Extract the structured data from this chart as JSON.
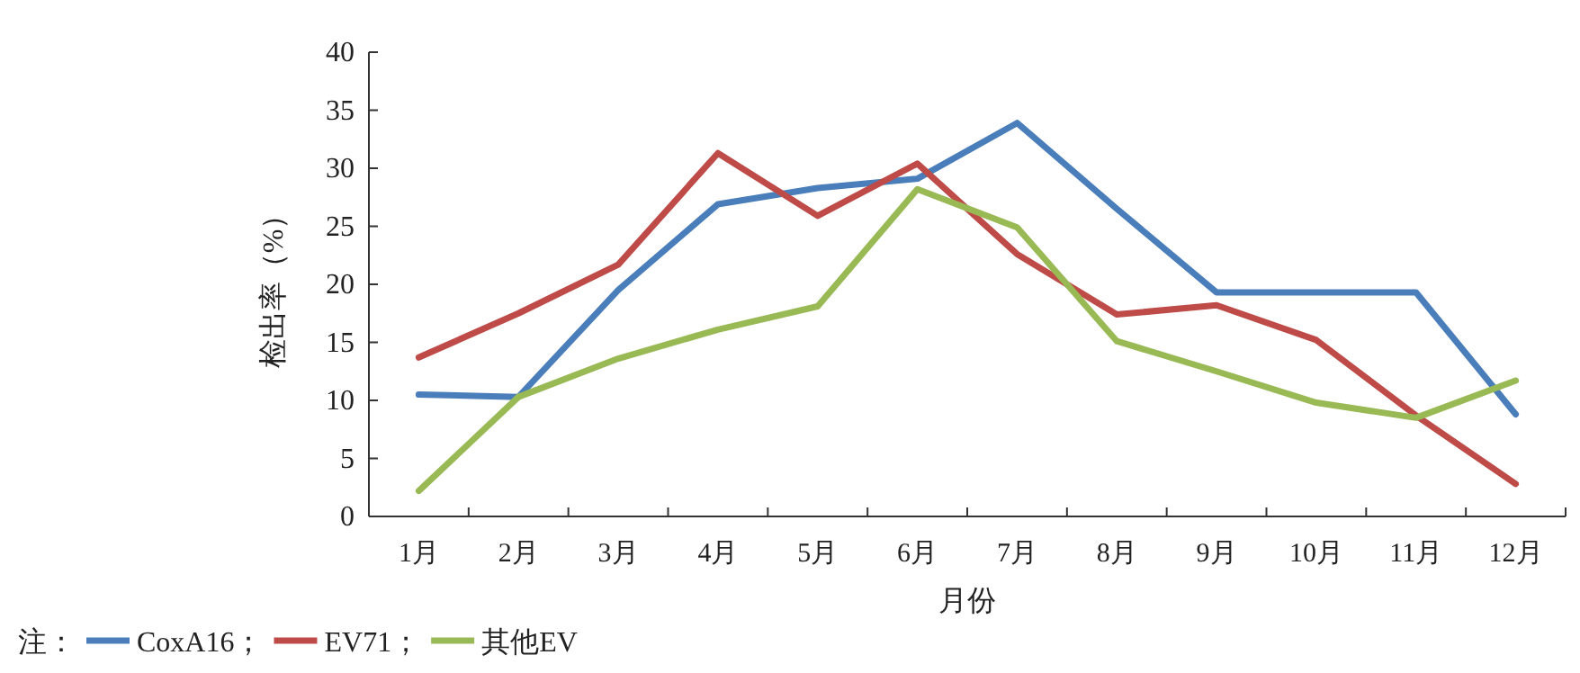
{
  "chart_data": {
    "type": "line",
    "xlabel": "月份",
    "ylabel": "检出率（%）",
    "legend_title": "注：",
    "legend": "bottom left",
    "categories": [
      "1月",
      "2月",
      "3月",
      "4月",
      "5月",
      "6月",
      "7月",
      "8月",
      "9月",
      "10月",
      "11月",
      "12月"
    ],
    "ylim": [
      0,
      40
    ],
    "yticks": [
      0,
      5,
      10,
      15,
      20,
      25,
      30,
      35,
      40
    ],
    "series": [
      {
        "name": "CoxA16；",
        "color": "#4a7ebb",
        "values": [
          10.5,
          10.3,
          19.5,
          26.9,
          28.3,
          29.1,
          33.9,
          26.5,
          19.3,
          19.3,
          19.3,
          8.8
        ]
      },
      {
        "name": "EV71；",
        "color": "#be4b48",
        "values": [
          13.7,
          17.5,
          21.7,
          31.3,
          25.9,
          30.4,
          22.6,
          17.4,
          18.2,
          15.2,
          8.7,
          2.8
        ]
      },
      {
        "name": "其他EV",
        "color": "#98b954",
        "values": [
          2.2,
          10.3,
          13.6,
          16.1,
          18.1,
          28.2,
          24.9,
          15.1,
          12.5,
          9.8,
          8.5,
          11.7
        ]
      }
    ]
  }
}
